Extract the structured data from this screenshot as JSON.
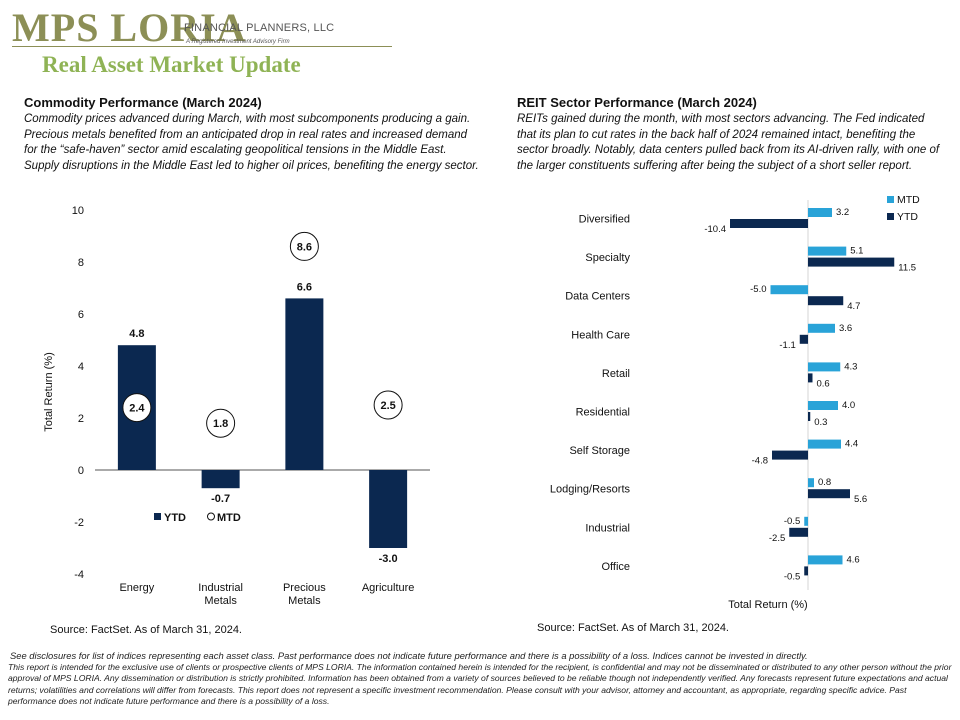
{
  "header": {
    "logo_text": "MPS LORIA",
    "logo_tagline": "FINANCIAL PLANNERS, LLC",
    "logo_subtagline": "A Registered Investment Advisory Firm",
    "page_title": "Real Asset Market Update"
  },
  "colors": {
    "navy": "#0b2850",
    "light_blue": "#29a3d8",
    "logo": "#8c8f56",
    "title_green": "#8fb355"
  },
  "commodity": {
    "title": "Commodity  Performance (March 2024)",
    "description": "Commodity prices advanced during March, with most subcomponents producing a gain. Precious metals benefited from an anticipated drop in real rates and increased demand for the “safe-haven”  sector amid escalating geopolitical tensions in the Middle East. Supply disruptions in the Middle East led to higher oil prices, benefiting the energy  sector.",
    "source": "Source: FactSet. As of March 31, 2024."
  },
  "reit": {
    "title": "REIT Sector Performance (March 2024)",
    "description": "REITs gained during the month, with most sectors advancing.  The Fed indicated that its plan to cut rates in the back half of 2024 remained intact, benefiting the sector broadly. Notably, data centers pulled back from its AI-driven rally, with one of the larger constituents suffering after being the subject of a short seller report.",
    "source": "Source: FactSet. As of March 31, 2024."
  },
  "disclaimer": {
    "line1": "See disclosures for list of indices representing each asset class. Past performance does not indicate future performance and there is a possibility of a loss. Indices cannot be invested in directly.",
    "line2": "This report is intended for the exclusive use of clients or prospective clients of MPS LORIA. The information contained herein is intended for the recipient, is confidential and may not be disseminated or distributed to any other person without the prior approval of MPS LORIA. Any dissemination or distribution is strictly prohibited. Information has been obtained from a variety of sources believed to be reliable though not independently verified. Any forecasts represent future expectations and actual returns; volatilities and correlations will differ from forecasts. This report does not represent a specific investment recommendation. Please consult with your advisor, attorney and accountant, as appropriate, regarding specific advice. Past performance does not indicate future performance and there is a possibility of a loss."
  },
  "chart_data": [
    {
      "type": "bar",
      "categories": [
        "Energy",
        "Industrial Metals",
        "Precious Metals",
        "Agriculture"
      ],
      "category_lines": [
        [
          "Energy"
        ],
        [
          "Industrial",
          "Metals"
        ],
        [
          "Precious",
          "Metals"
        ],
        [
          "Agriculture"
        ]
      ],
      "series": [
        {
          "name": "YTD",
          "values": [
            4.8,
            -0.7,
            6.6,
            -3.0
          ],
          "labels": [
            "4.8",
            "-0.7",
            "6.6",
            "-3.0"
          ]
        },
        {
          "name": "MTD",
          "values": [
            2.4,
            1.8,
            8.6,
            2.5
          ],
          "labels": [
            "2.4",
            "1.8",
            "8.6",
            "2.5"
          ]
        }
      ],
      "ylabel": "Total Return (%)",
      "ylim": [
        -4,
        10
      ],
      "yticks": [
        -4,
        -2,
        0,
        2,
        4,
        6,
        8,
        10
      ],
      "ytick_labels": [
        "-4",
        "-2",
        "0",
        "2",
        "4",
        "6",
        "8",
        "10"
      ],
      "legend_placement": "bottom-center",
      "grid": false
    },
    {
      "type": "bar",
      "orientation": "horizontal",
      "categories": [
        "Diversified",
        "Specialty",
        "Data Centers",
        "Health Care",
        "Retail",
        "Residential",
        "Self Storage",
        "Lodging/Resorts",
        "Industrial",
        "Office"
      ],
      "series": [
        {
          "name": "MTD",
          "values": [
            3.2,
            5.1,
            -5.0,
            3.6,
            4.3,
            4.0,
            4.4,
            0.8,
            -0.5,
            4.6
          ],
          "labels": [
            "3.2",
            "5.1",
            "-5.0",
            "3.6",
            "4.3",
            "4.0",
            "4.4",
            "0.8",
            "-0.5",
            "4.6"
          ]
        },
        {
          "name": "YTD",
          "values": [
            -10.4,
            11.5,
            4.7,
            -1.1,
            0.6,
            0.3,
            -4.8,
            5.6,
            -2.5,
            -0.5
          ],
          "labels": [
            "-10.4",
            "11.5",
            "4.7",
            "-1.1",
            "0.6",
            "0.3",
            "-4.8",
            "5.6",
            "-2.5",
            "-0.5"
          ]
        }
      ],
      "xlabel": "Total Return (%)",
      "xlim": [
        -12,
        12
      ],
      "legend_placement": "top-right",
      "grid": false
    }
  ]
}
